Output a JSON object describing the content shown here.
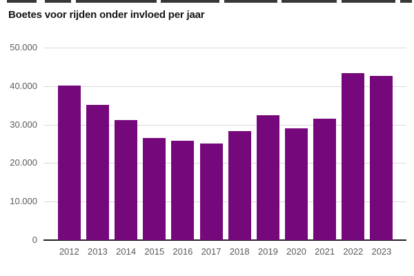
{
  "top_strip": {
    "color": "#383838",
    "height": 4,
    "segments": [
      [
        10,
        43
      ],
      [
        65,
        38
      ],
      [
        110,
        117
      ],
      [
        233,
        85
      ],
      [
        325,
        77
      ],
      [
        408,
        80
      ],
      [
        495,
        78
      ],
      [
        580,
        17
      ]
    ]
  },
  "chart_data": {
    "type": "bar",
    "title": "Boetes voor rijden onder invloed per jaar",
    "categories": [
      "2012",
      "2013",
      "2014",
      "2015",
      "2016",
      "2017",
      "2018",
      "2019",
      "2020",
      "2021",
      "2022",
      "2023"
    ],
    "values": [
      40200,
      35100,
      31200,
      26500,
      25800,
      25100,
      28300,
      32400,
      29100,
      31500,
      43400,
      42700
    ],
    "ylim": [
      0,
      50000
    ],
    "yticks": [
      {
        "value": 50000,
        "label": "50.000"
      },
      {
        "value": 40000,
        "label": "40.000"
      },
      {
        "value": 30000,
        "label": "30.000"
      },
      {
        "value": 20000,
        "label": "20.000"
      },
      {
        "value": 10000,
        "label": "10.000"
      },
      {
        "value": 0,
        "label": "0"
      }
    ],
    "grid": true,
    "legend": false,
    "colors": {
      "bar": "#75087a",
      "grid": "#d9d9d9",
      "axis": "#1f1f1f",
      "tick_label": "#595959",
      "title": "#141414"
    }
  }
}
